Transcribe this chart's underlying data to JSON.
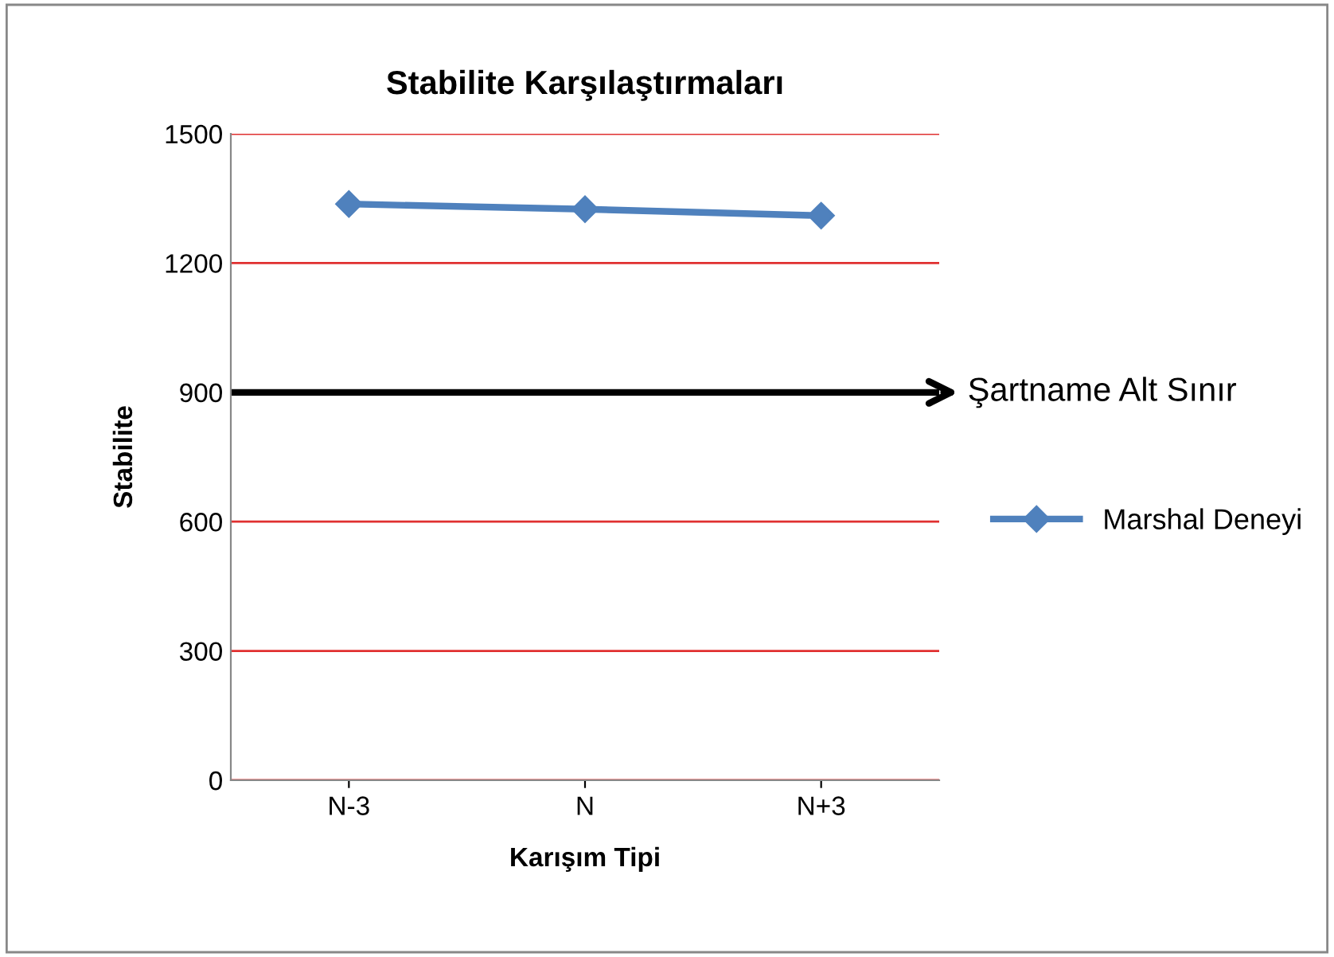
{
  "chart_data": {
    "type": "line",
    "title": "Stabilite Karşılaştırmaları",
    "xlabel": "Karışım Tipi",
    "ylabel": "Stabilite",
    "categories": [
      "N-3",
      "N",
      "N+3"
    ],
    "series": [
      {
        "name": "Marshal Deneyi",
        "color": "#4f81bd",
        "values": [
          1337,
          1325,
          1310
        ]
      }
    ],
    "ylim": [
      0,
      1500
    ],
    "yticks": [
      0,
      300,
      600,
      900,
      1200,
      1500
    ],
    "grid": "y",
    "legend": "right",
    "marker": "diamond",
    "line_style": "solid",
    "ref_lines": [
      {
        "axis": "y",
        "value": 900,
        "label": "Şartname Alt Sınır",
        "color": "#000000"
      }
    ]
  }
}
